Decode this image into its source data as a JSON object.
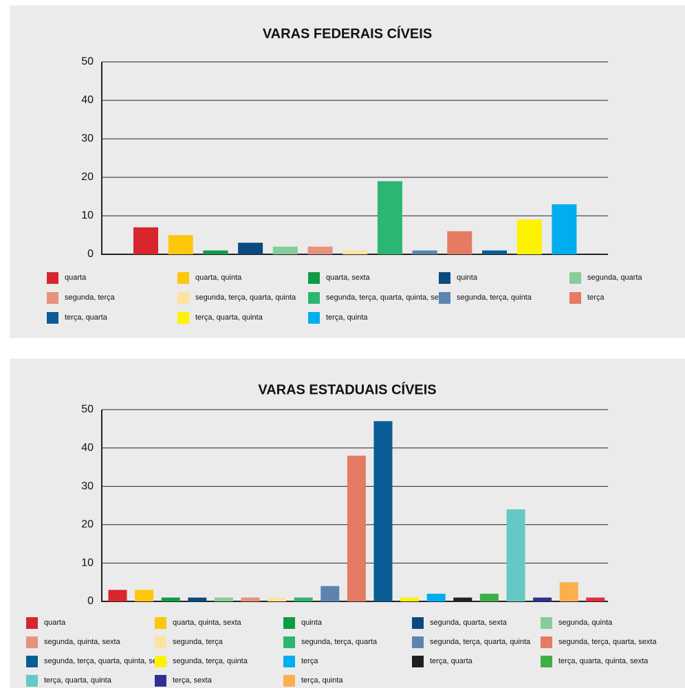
{
  "chart_data": [
    {
      "type": "bar",
      "title": "VARAS FEDERAIS CÍVEIS",
      "categories": [
        "quarta",
        "quarta, quinta",
        "quarta, sexta",
        "quinta",
        "segunda, quarta",
        "segunda, terça",
        "segunda, terça, quarta, quinta",
        "segunda, terça, quarta, quinta, sexta",
        "segunda, terça, quinta",
        "terça",
        "terça, quarta",
        "terça, quarta, quinta",
        "terça, quinta"
      ],
      "values": [
        7,
        5,
        1,
        3,
        2,
        2,
        1,
        19,
        1,
        6,
        1,
        9,
        13
      ],
      "colors": [
        "#d7262e",
        "#fdc70c",
        "#0f9b46",
        "#0a4a7f",
        "#86cc9c",
        "#e7927c",
        "#fde3a0",
        "#2bb673",
        "#5b84b1",
        "#e47b62",
        "#0a5c94",
        "#fff200",
        "#00aeef"
      ],
      "ylim": [
        0,
        50
      ],
      "yticks": [
        0,
        10,
        20,
        30,
        40,
        50
      ],
      "grid": true
    },
    {
      "type": "bar",
      "title": "VARAS ESTADUAIS CÍVEIS",
      "categories": [
        "quarta",
        "quarta, quinta, sexta",
        "quinta",
        "segunda, quarta, sexta",
        "segunda, quinta",
        "segunda, quinta, sexta",
        "segunda, terça",
        "segunda, terça, quarta",
        "segunda, terça, quarta, quinta",
        "segunda, terça, quarta, sexta",
        "segunda, terça, quarta, quinta, sexta",
        "segunda, terça, quinta",
        "terça",
        "terça, quarta",
        "terça, quarta, quinta, sexta",
        "terça, quarta, quinta",
        "terça, sexta",
        "terça, quinta",
        null
      ],
      "values": [
        3,
        3,
        1,
        1,
        1,
        1,
        1,
        1,
        4,
        38,
        47,
        1,
        2,
        1,
        2,
        24,
        1,
        5,
        1
      ],
      "colors": [
        "#d7262e",
        "#fdc70c",
        "#0f9b46",
        "#0a4a7f",
        "#86cc9c",
        "#e7927c",
        "#fde3a0",
        "#2bb673",
        "#5b84b1",
        "#e47b62",
        "#0a5c94",
        "#fff200",
        "#00aeef",
        "#231f20",
        "#3fae49",
        "#66c8c4",
        "#2e3192",
        "#fbb04c",
        "#e8283a"
      ],
      "ylim": [
        0,
        50
      ],
      "yticks": [
        0,
        10,
        20,
        30,
        40,
        50
      ],
      "grid": true
    }
  ]
}
